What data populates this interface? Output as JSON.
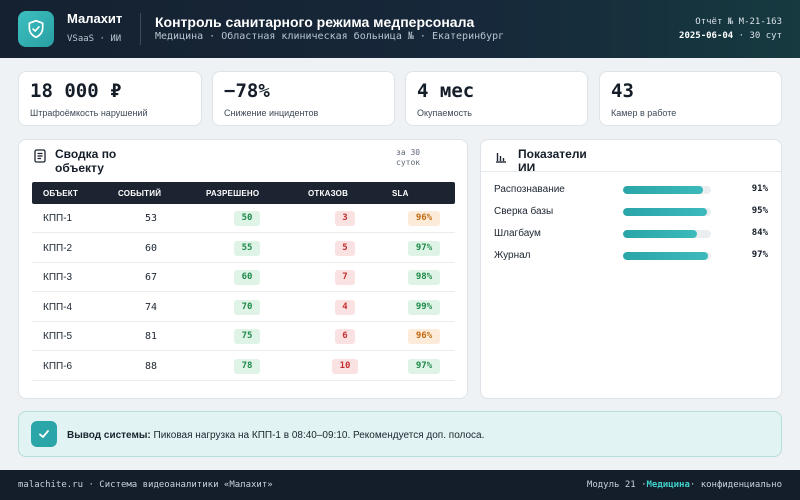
{
  "header": {
    "brand_name": "Малахит",
    "brand_sub": "VSaaS · ИИ",
    "title": "Контроль санитарного режима медперсонала",
    "subtitle": "Медицина · Областная клиническая больница № · Екатеринбург",
    "report_id": "Отчёт № М-21-163",
    "report_date": "2025-06-04",
    "report_period": "· 30 сут"
  },
  "kpis": [
    {
      "value": "18 000 ₽",
      "label": "Штрафоёмкость нарушений"
    },
    {
      "value": "−78%",
      "label": "Снижение инцидентов"
    },
    {
      "value": "4 мес",
      "label": "Окупаемость"
    },
    {
      "value": "43",
      "label": "Камер в работе"
    }
  ],
  "summary": {
    "title": "Сводка по объекту",
    "period": "за 30 суток",
    "columns": [
      "ОБЪЕКТ",
      "СОБЫТИЙ",
      "РАЗРЕШЕНО",
      "ОТКАЗОВ",
      "SLA"
    ],
    "rows": [
      {
        "name": "КПП-1",
        "events": "53",
        "allowed": "50",
        "denied": "3",
        "sla": "96%",
        "sla_status": "warn"
      },
      {
        "name": "КПП-2",
        "events": "60",
        "allowed": "55",
        "denied": "5",
        "sla": "97%",
        "sla_status": "ok"
      },
      {
        "name": "КПП-3",
        "events": "67",
        "allowed": "60",
        "denied": "7",
        "sla": "98%",
        "sla_status": "ok"
      },
      {
        "name": "КПП-4",
        "events": "74",
        "allowed": "70",
        "denied": "4",
        "sla": "99%",
        "sla_status": "ok"
      },
      {
        "name": "КПП-5",
        "events": "81",
        "allowed": "75",
        "denied": "6",
        "sla": "96%",
        "sla_status": "warn"
      },
      {
        "name": "КПП-6",
        "events": "88",
        "allowed": "78",
        "denied": "10",
        "sla": "97%",
        "sla_status": "ok"
      }
    ]
  },
  "ai_metrics": {
    "title": "Показатели ИИ",
    "items": [
      {
        "label": "Распознавание",
        "value": "91%",
        "level": 0.91
      },
      {
        "label": "Сверка базы",
        "value": "95%",
        "level": 0.95
      },
      {
        "label": "Шлагбаум",
        "value": "84%",
        "level": 0.84
      },
      {
        "label": "Журнал",
        "value": "97%",
        "level": 0.97
      }
    ]
  },
  "conclusion": {
    "label": "Вывод системы:",
    "text": "Пиковая нагрузка на КПП-1 в 08:40–09:10. Рекомендуется доп. полоса."
  },
  "footer": {
    "left": "malachite.ru · Система видеоаналитики «Малахит»",
    "module": "Модуль 21 ·",
    "module_accent": "Медицина",
    "confidential": "· конфиденциально"
  },
  "colors": {
    "accent": "#2aa5a8",
    "header_bg": "#16283a",
    "ok": "#1d8a4a",
    "warn": "#c06a10",
    "danger": "#c43030"
  }
}
